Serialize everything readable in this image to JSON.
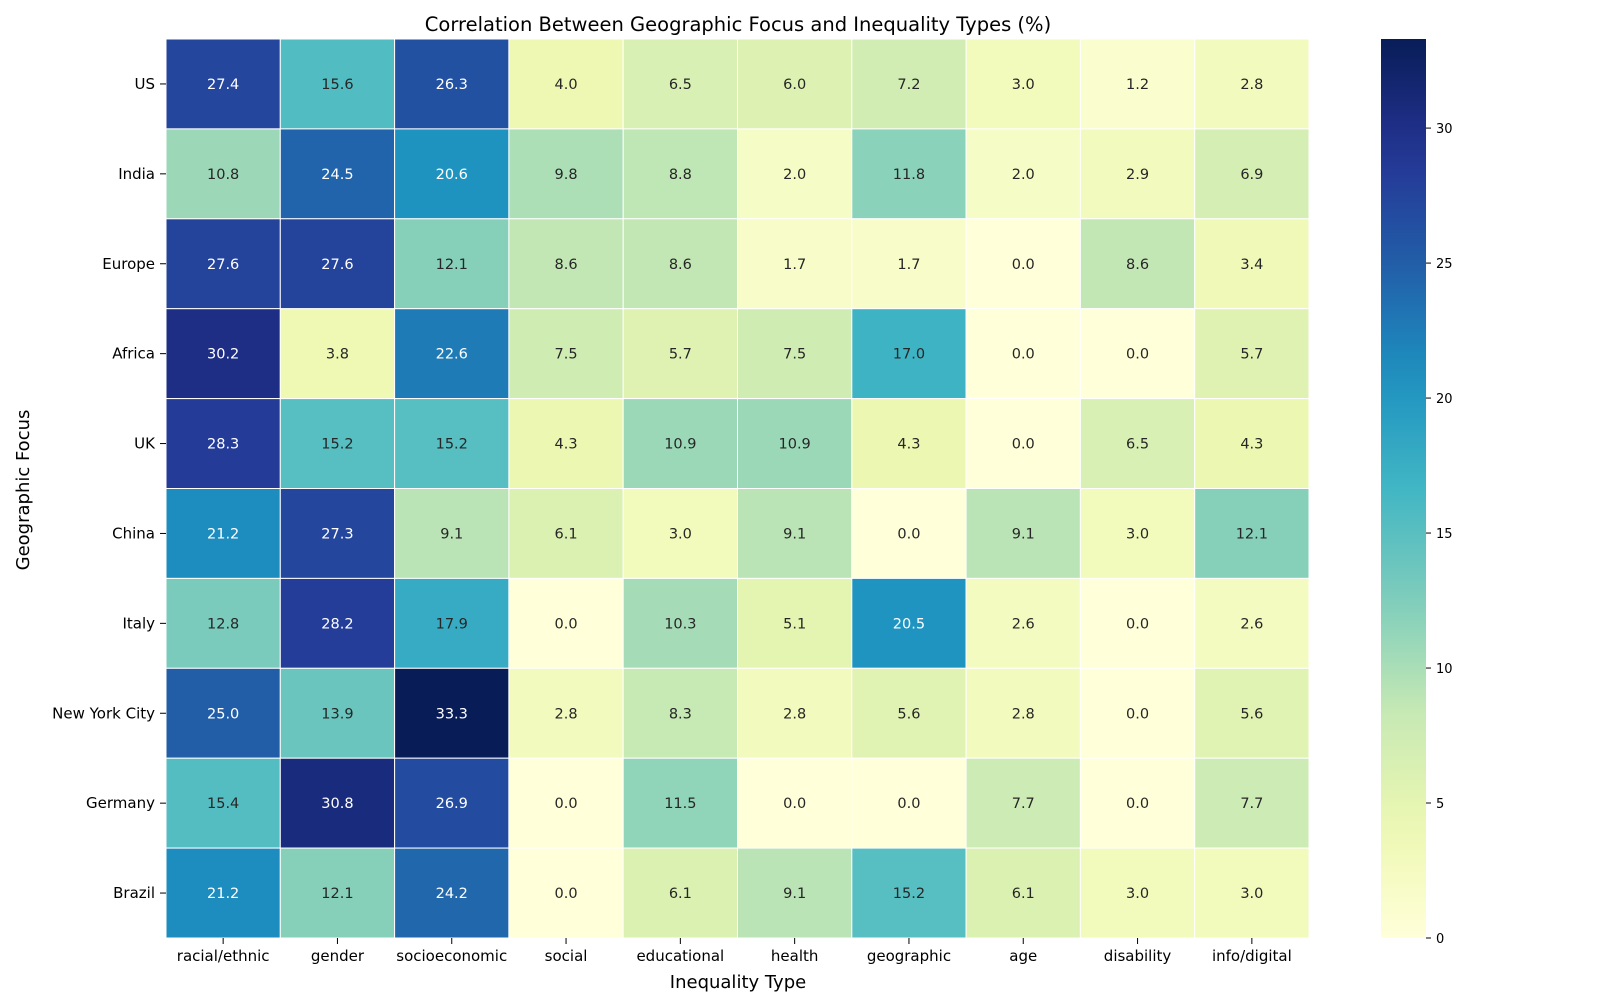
{
  "chart_data": {
    "type": "heatmap",
    "title": "Correlation Between Geographic Focus and Inequality Types (%)",
    "xlabel": "Inequality Type",
    "ylabel": "Geographic Focus",
    "x_categories": [
      "racial/ethnic",
      "gender",
      "socioeconomic",
      "social",
      "educational",
      "health",
      "geographic",
      "age",
      "disability",
      "info/digital"
    ],
    "y_categories": [
      "US",
      "India",
      "Europe",
      "Africa",
      "UK",
      "China",
      "Italy",
      "New York City",
      "Germany",
      "Brazil"
    ],
    "values": [
      [
        27.4,
        15.6,
        26.3,
        4.0,
        6.5,
        6.0,
        7.2,
        3.0,
        1.2,
        2.8
      ],
      [
        10.8,
        24.5,
        20.6,
        9.8,
        8.8,
        2.0,
        11.8,
        2.0,
        2.9,
        6.9
      ],
      [
        27.6,
        27.6,
        12.1,
        8.6,
        8.6,
        1.7,
        1.7,
        0.0,
        8.6,
        3.4
      ],
      [
        30.2,
        3.8,
        22.6,
        7.5,
        5.7,
        7.5,
        17.0,
        0.0,
        0.0,
        5.7
      ],
      [
        28.3,
        15.2,
        15.2,
        4.3,
        10.9,
        10.9,
        4.3,
        0.0,
        6.5,
        4.3
      ],
      [
        21.2,
        27.3,
        9.1,
        6.1,
        3.0,
        9.1,
        0.0,
        9.1,
        3.0,
        12.1
      ],
      [
        12.8,
        28.2,
        17.9,
        0.0,
        10.3,
        5.1,
        20.5,
        2.6,
        0.0,
        2.6
      ],
      [
        25.0,
        13.9,
        33.3,
        2.8,
        8.3,
        2.8,
        5.6,
        2.8,
        0.0,
        5.6
      ],
      [
        15.4,
        30.8,
        26.9,
        0.0,
        11.5,
        0.0,
        0.0,
        7.7,
        0.0,
        7.7
      ],
      [
        21.2,
        12.1,
        24.2,
        0.0,
        6.1,
        9.1,
        15.2,
        6.1,
        3.0,
        3.0
      ]
    ],
    "value_format": "one decimal",
    "colormap": "YlGnBu",
    "color_range": [
      0,
      33.3
    ],
    "colorbar_ticks": [
      "0",
      "5",
      "10",
      "15",
      "20",
      "25",
      "30"
    ],
    "grid": false,
    "legend": "colorbar right"
  }
}
